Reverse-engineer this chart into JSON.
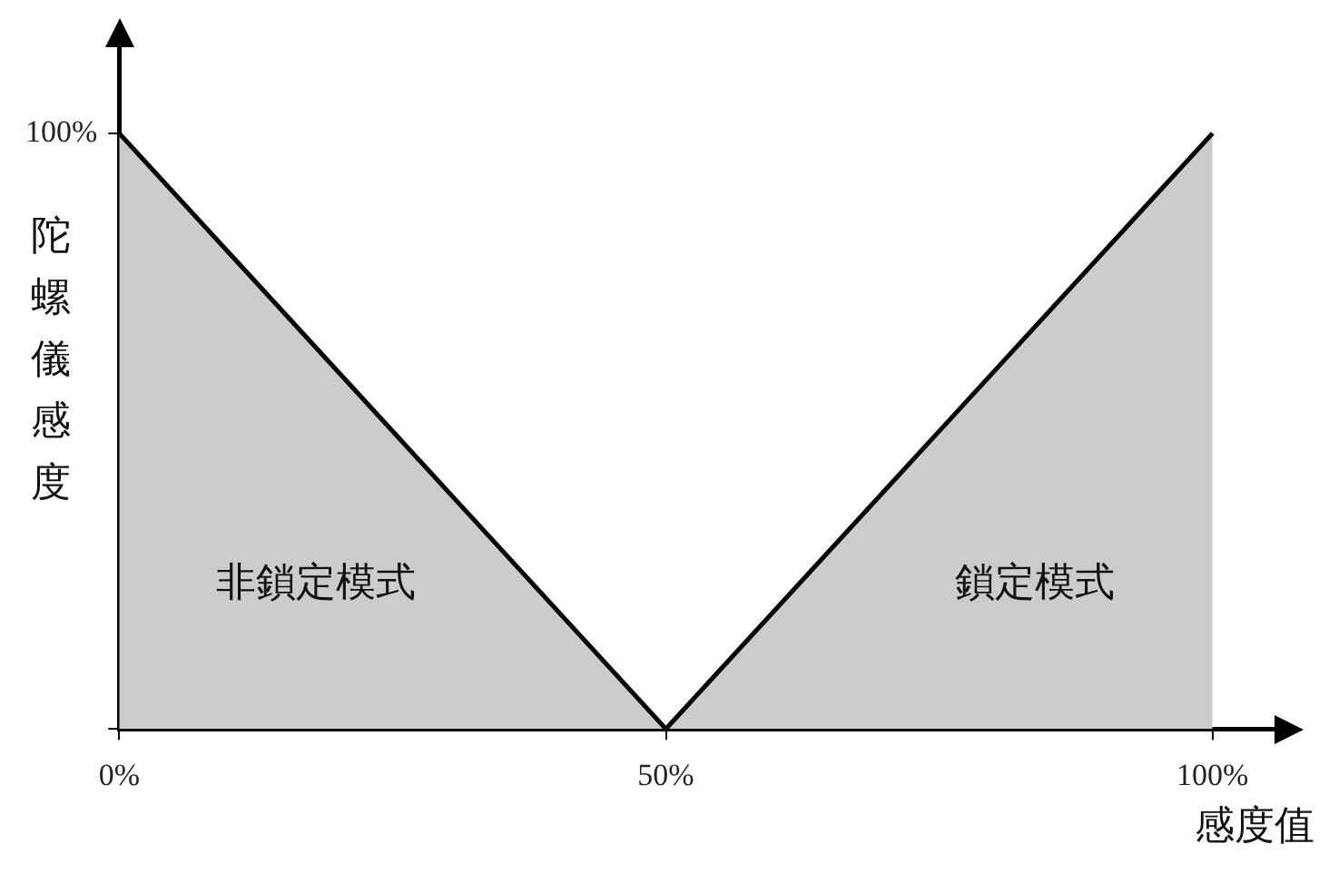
{
  "chart_data": {
    "type": "area",
    "xlabel": "感度值",
    "ylabel": "陀螺儀感度",
    "xlim": [
      0,
      106
    ],
    "xticks": [
      {
        "value": 0,
        "label": "0%"
      },
      {
        "value": 50,
        "label": "50%"
      },
      {
        "value": 100,
        "label": "100%"
      }
    ],
    "ylim": [
      0,
      115
    ],
    "yticks": [
      {
        "value": 0,
        "label": null
      },
      {
        "value": 100,
        "label": "100%"
      }
    ],
    "series": [
      {
        "x": [
          0,
          50
        ],
        "values": [
          100,
          0
        ],
        "color": "#cccccc"
      },
      {
        "x": [
          50,
          100
        ],
        "values": [
          0,
          100
        ],
        "color": "#cccccc"
      }
    ],
    "annotations": [
      "非鎖定模式",
      "鎖定模式"
    ],
    "grid": false,
    "legend": false
  }
}
